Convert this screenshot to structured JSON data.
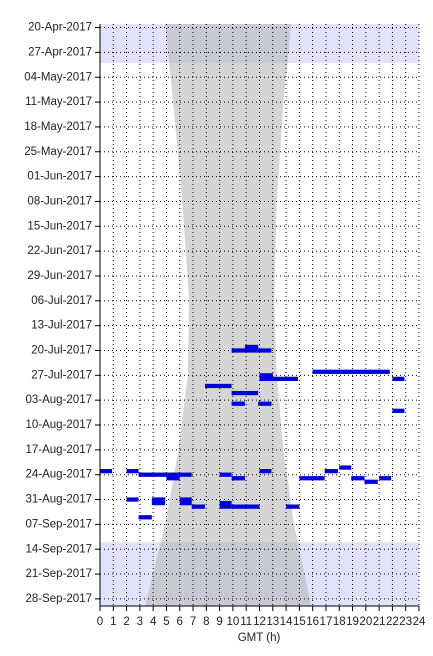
{
  "chart_data": {
    "type": "timeline",
    "xlabel": "GMT (h)",
    "xlim": [
      0,
      24
    ],
    "xticks": [
      0,
      1,
      2,
      3,
      4,
      5,
      6,
      7,
      8,
      9,
      10,
      11,
      12,
      13,
      14,
      15,
      16,
      17,
      18,
      19,
      20,
      21,
      22,
      23,
      24
    ],
    "ylim": [
      "2017-04-19",
      "2017-09-30"
    ],
    "yticks": [
      {
        "value": "2017-04-20",
        "label": "20-Apr-2017"
      },
      {
        "value": "2017-04-27",
        "label": "27-Apr-2017"
      },
      {
        "value": "2017-05-04",
        "label": "04-May-2017"
      },
      {
        "value": "2017-05-11",
        "label": "11-May-2017"
      },
      {
        "value": "2017-05-18",
        "label": "18-May-2017"
      },
      {
        "value": "2017-05-25",
        "label": "25-May-2017"
      },
      {
        "value": "2017-06-01",
        "label": "01-Jun-2017"
      },
      {
        "value": "2017-06-08",
        "label": "08-Jun-2017"
      },
      {
        "value": "2017-06-15",
        "label": "15-Jun-2017"
      },
      {
        "value": "2017-06-22",
        "label": "22-Jun-2017"
      },
      {
        "value": "2017-06-29",
        "label": "29-Jun-2017"
      },
      {
        "value": "2017-07-06",
        "label": "06-Jul-2017"
      },
      {
        "value": "2017-07-13",
        "label": "13-Jul-2017"
      },
      {
        "value": "2017-07-20",
        "label": "20-Jul-2017"
      },
      {
        "value": "2017-07-27",
        "label": "27-Jul-2017"
      },
      {
        "value": "2017-08-03",
        "label": "03-Aug-2017"
      },
      {
        "value": "2017-08-10",
        "label": "10-Aug-2017"
      },
      {
        "value": "2017-08-17",
        "label": "17-Aug-2017"
      },
      {
        "value": "2017-08-24",
        "label": "24-Aug-2017"
      },
      {
        "value": "2017-08-31",
        "label": "31-Aug-2017"
      },
      {
        "value": "2017-09-07",
        "label": "07-Sep-2017"
      },
      {
        "value": "2017-09-14",
        "label": "14-Sep-2017"
      },
      {
        "value": "2017-09-21",
        "label": "21-Sep-2017"
      },
      {
        "value": "2017-09-28",
        "label": "28-Sep-2017"
      }
    ],
    "grid": true,
    "bands": {
      "color": "#e2e2fb",
      "from": [
        "2017-04-19",
        "2017-09-12"
      ],
      "to": [
        "2017-04-30",
        "2017-09-30"
      ]
    },
    "shade": {
      "color": "#b9b9b9",
      "dates": [
        "2017-04-19",
        "2017-05-11",
        "2017-06-08",
        "2017-07-06",
        "2017-07-27",
        "2017-08-17",
        "2017-09-07",
        "2017-09-30"
      ],
      "start": [
        4.9,
        5.5,
        6.2,
        6.7,
        6.6,
        5.9,
        4.9,
        3.4
      ],
      "end": [
        14.4,
        13.8,
        13.3,
        13.1,
        13.3,
        13.8,
        14.6,
        15.9
      ]
    },
    "intervals": {
      "color": "#0000dd",
      "dates": [
        "2017-07-20",
        "2017-07-19",
        "2017-07-26",
        "2017-07-28",
        "2017-07-28",
        "2017-07-27",
        "2017-07-30",
        "2017-08-01",
        "2017-08-04",
        "2017-08-04",
        "2017-08-06",
        "2017-08-23",
        "2017-08-23",
        "2017-08-24",
        "2017-08-25",
        "2017-08-23",
        "2017-08-24",
        "2017-08-25",
        "2017-08-25",
        "2017-08-23",
        "2017-08-22",
        "2017-08-25",
        "2017-08-26",
        "2017-08-25",
        "2017-08-31",
        "2017-08-31",
        "2017-09-01",
        "2017-08-31",
        "2017-09-01",
        "2017-09-02",
        "2017-09-01",
        "2017-09-02",
        "2017-09-02",
        "2017-09-02",
        "2017-09-05"
      ],
      "start": [
        9.9,
        10.9,
        16.0,
        22.0,
        12.0,
        12.0,
        7.9,
        9.9,
        9.9,
        11.9,
        22.0,
        0.0,
        2.0,
        2.9,
        5.0,
        12.0,
        9.0,
        9.9,
        15.0,
        16.9,
        18.0,
        18.9,
        19.9,
        21.0,
        2.0,
        3.9,
        3.9,
        6.0,
        6.0,
        6.9,
        9.0,
        9.0,
        9.9,
        14.0,
        2.9
      ],
      "end": [
        12.9,
        11.9,
        21.8,
        22.9,
        14.9,
        13.0,
        9.9,
        11.9,
        10.9,
        12.9,
        22.9,
        0.9,
        2.9,
        6.9,
        6.0,
        12.9,
        9.9,
        10.9,
        16.9,
        17.9,
        18.9,
        19.9,
        20.9,
        21.9,
        2.9,
        4.9,
        4.9,
        6.9,
        6.9,
        7.9,
        9.9,
        9.9,
        12.0,
        15.0,
        3.9
      ]
    }
  }
}
